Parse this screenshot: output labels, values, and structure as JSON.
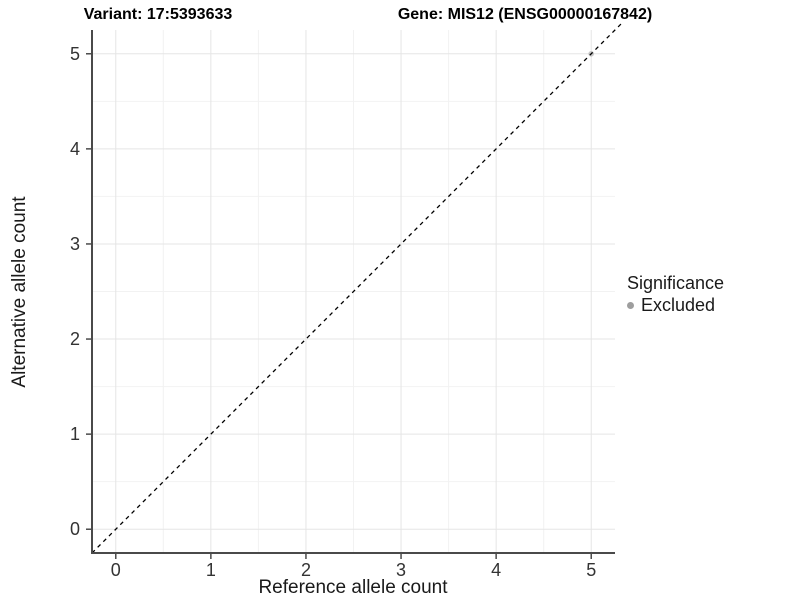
{
  "chart_data": {
    "type": "scatter",
    "titles": {
      "variant": "Variant: 17:5393633",
      "gene": "Gene: MIS12 (ENSG00000167842)"
    },
    "xlabel": "Reference allele count",
    "ylabel": "Alternative allele count",
    "xlim": [
      -0.25,
      5.25
    ],
    "ylim": [
      -0.25,
      5.25
    ],
    "xticks": [
      0,
      1,
      2,
      3,
      4,
      5
    ],
    "yticks": [
      0,
      1,
      2,
      3,
      4,
      5
    ],
    "xminor": [
      0.5,
      1.5,
      2.5,
      3.5,
      4.5
    ],
    "yminor": [
      0.5,
      1.5,
      2.5,
      3.5,
      4.5
    ],
    "grid": {
      "major": true,
      "minor": true
    },
    "background": "#ffffff",
    "reference_line": {
      "type": "identity",
      "slope": 1,
      "intercept": 0,
      "style": "dashed",
      "color": "#000000"
    },
    "series": [
      {
        "name": "Excluded",
        "color": "#9e9e9e",
        "opacity": 0.55,
        "points": [
          {
            "x": 5,
            "y": 5
          }
        ]
      }
    ],
    "legend": {
      "title": "Significance",
      "position": "right",
      "items": [
        {
          "label": "Excluded",
          "color": "#9e9e9e"
        }
      ]
    },
    "style": {
      "grid_major_color": "#e5e5e5",
      "grid_minor_color": "#f2f2f2",
      "axis_color": "#4a4a4a",
      "tick_color": "#4a4a4a",
      "tick_label_color": "#333333",
      "text_color": "#1a1a1a"
    }
  }
}
